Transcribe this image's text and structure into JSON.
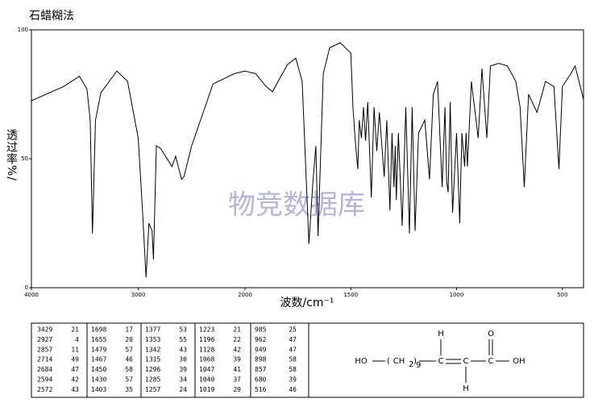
{
  "chart_data": {
    "type": "line",
    "title": "石蜡糊法",
    "ylabel": "透过率%/",
    "xlabel": "波数/cm⁻¹",
    "watermark": "物竞数据库",
    "xlim": [
      4000,
      400
    ],
    "x_scale_break": 2000,
    "xticks": [
      4000,
      3000,
      2000,
      1500,
      1000,
      500
    ],
    "ylim": [
      0,
      100
    ],
    "yticks": [
      0,
      50,
      100
    ],
    "series": [
      {
        "color": "#000000",
        "x": [
          4000,
          3700,
          3550,
          3480,
          3450,
          3429,
          3400,
          3350,
          3200,
          3100,
          3000,
          2960,
          2927,
          2900,
          2870,
          2857,
          2830,
          2790,
          2760,
          2714,
          2684,
          2650,
          2594,
          2572,
          2500,
          2300,
          2100,
          2000,
          1950,
          1900,
          1870,
          1800,
          1760,
          1730,
          1698,
          1680,
          1665,
          1655,
          1630,
          1600,
          1550,
          1500,
          1490,
          1479,
          1467,
          1460,
          1450,
          1440,
          1430,
          1420,
          1403,
          1390,
          1377,
          1365,
          1353,
          1342,
          1330,
          1315,
          1305,
          1296,
          1290,
          1285,
          1275,
          1257,
          1240,
          1223,
          1210,
          1196,
          1180,
          1150,
          1128,
          1110,
          1090,
          1068,
          1055,
          1047,
          1040,
          1030,
          1019,
          1000,
          985,
          975,
          962,
          955,
          949,
          930,
          898,
          880,
          857,
          840,
          800,
          760,
          720,
          700,
          680,
          660,
          620,
          580,
          540,
          516,
          500,
          460,
          440,
          400
        ],
        "values": [
          72.5,
          78,
          82,
          77,
          65,
          21,
          65,
          75.6,
          84,
          80,
          58,
          30,
          4,
          25,
          22,
          11,
          55,
          54,
          52,
          49,
          47,
          51,
          42,
          43,
          55,
          79,
          83,
          84,
          83,
          78,
          76,
          86.5,
          89,
          80,
          17,
          40,
          55,
          20,
          83,
          93,
          95,
          91,
          70,
          57,
          46,
          65,
          58,
          70,
          57,
          72,
          35,
          70,
          53,
          68,
          55,
          43,
          65,
          30,
          60,
          39,
          55,
          34,
          60,
          24,
          70,
          21,
          70,
          22,
          60,
          65,
          42,
          75,
          80,
          39,
          70,
          41,
          37,
          72,
          29,
          60,
          25,
          60,
          47,
          60,
          47,
          80,
          58,
          85,
          58,
          86,
          87,
          86,
          80,
          70,
          39,
          75,
          68,
          80,
          78,
          46,
          78,
          83,
          86,
          73
        ]
      }
    ]
  },
  "peak_table": {
    "columns": [
      [
        [
          3429,
          21
        ],
        [
          2927,
          4
        ],
        [
          2857,
          11
        ],
        [
          2714,
          49
        ],
        [
          2684,
          47
        ],
        [
          2594,
          42
        ],
        [
          2572,
          43
        ]
      ],
      [
        [
          1698,
          17
        ],
        [
          1655,
          20
        ],
        [
          1479,
          57
        ],
        [
          1467,
          46
        ],
        [
          1450,
          58
        ],
        [
          1430,
          57
        ],
        [
          1403,
          35
        ]
      ],
      [
        [
          1377,
          53
        ],
        [
          1353,
          55
        ],
        [
          1342,
          43
        ],
        [
          1315,
          30
        ],
        [
          1296,
          39
        ],
        [
          1285,
          34
        ],
        [
          1257,
          24
        ]
      ],
      [
        [
          1223,
          21
        ],
        [
          1196,
          22
        ],
        [
          1128,
          42
        ],
        [
          1068,
          39
        ],
        [
          1047,
          41
        ],
        [
          1040,
          37
        ],
        [
          1019,
          29
        ]
      ],
      [
        [
          985,
          25
        ],
        [
          962,
          47
        ],
        [
          949,
          47
        ],
        [
          898,
          58
        ],
        [
          857,
          58
        ],
        [
          680,
          39
        ],
        [
          516,
          46
        ]
      ]
    ]
  },
  "structure": {
    "ho": "HO",
    "open": "(",
    "ch": "CH",
    "sub2": "2",
    "close": ")",
    "subn": "9",
    "c1": "C",
    "c2": "C",
    "c3": "C",
    "oh": "OH",
    "h1": "H",
    "h2": "H",
    "o": "O"
  }
}
